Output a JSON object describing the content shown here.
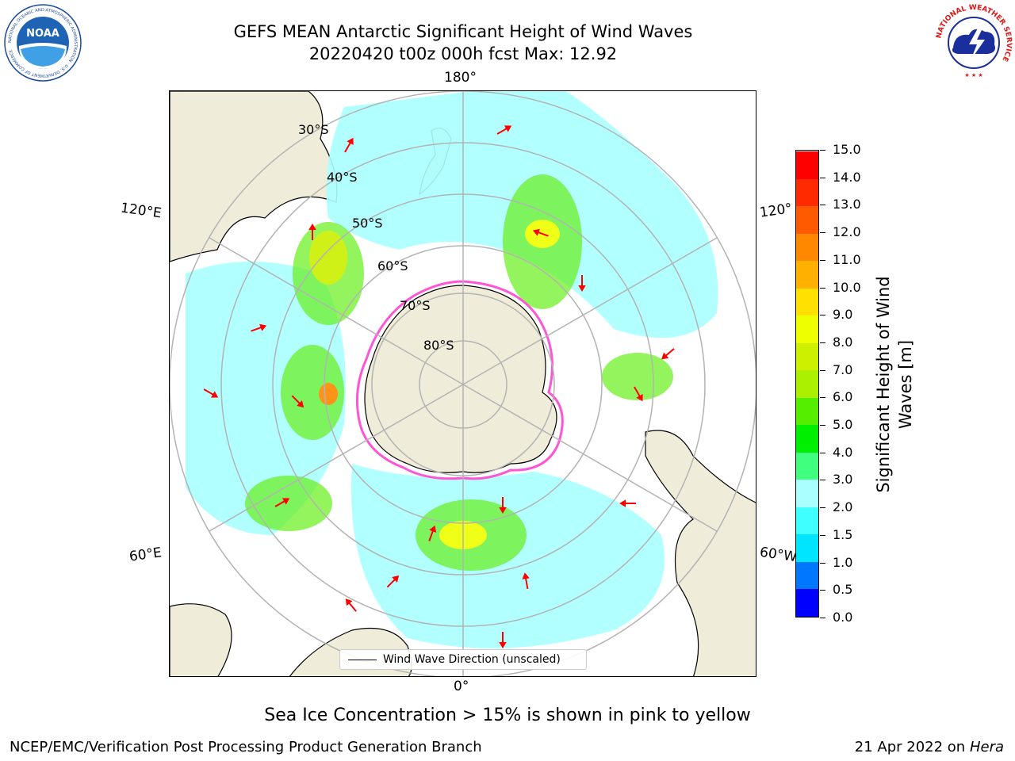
{
  "header": {
    "title_line1": "GEFS MEAN Antarctic Significant Height of Wind Waves",
    "title_line2": "20220420 t00z 000h fcst   Max: 12.92"
  },
  "logos": {
    "noaa": {
      "text": "NOAA",
      "ring_text": "NATIONAL OCEANIC AND ATMOSPHERIC ADMINISTRATION · U.S. DEPARTMENT OF COMMERCE"
    },
    "nws": {
      "ring_text": "NATIONAL WEATHER SERVICE"
    }
  },
  "map": {
    "longitude_labels": {
      "top": "180°",
      "left_upper": "120°E",
      "right_upper": "120°",
      "left_lower": "60°E",
      "right_lower": "60°W",
      "bottom": "0°"
    },
    "latitude_labels": [
      "30°S",
      "40°S",
      "50°S",
      "60°S",
      "70°S",
      "80°S"
    ],
    "legend_label": "Wind Wave Direction (unscaled)",
    "colors": {
      "land": "#efedd9",
      "ice_edge": "#ff55d4",
      "arrow": "#ff0000",
      "grid": "#b3b3b3"
    }
  },
  "colorbar": {
    "title": "Significant Height of Wind Waves [m]",
    "ticks": [
      "0.0",
      "0.5",
      "1.0",
      "1.5",
      "2.0",
      "3.0",
      "4.0",
      "5.0",
      "6.0",
      "7.0",
      "8.0",
      "9.0",
      "10.0",
      "11.0",
      "12.0",
      "13.0",
      "14.0",
      "15.0"
    ],
    "colors": [
      "#0000ff",
      "#0077ff",
      "#00e5ff",
      "#3fffff",
      "#aaffff",
      "#40ff7f",
      "#00ee00",
      "#55ee00",
      "#aaf000",
      "#ccf000",
      "#eeff00",
      "#ffe000",
      "#ffb000",
      "#ff8800",
      "#ff5a00",
      "#ff2a00",
      "#ff0000"
    ]
  },
  "caption": "Sea Ice Concentration > 15% is shown in pink to yellow",
  "footer": {
    "left": "NCEP/EMC/Verification Post Processing Product Generation Branch",
    "right_date": "21 Apr 2022 on ",
    "right_host": "Hera"
  }
}
